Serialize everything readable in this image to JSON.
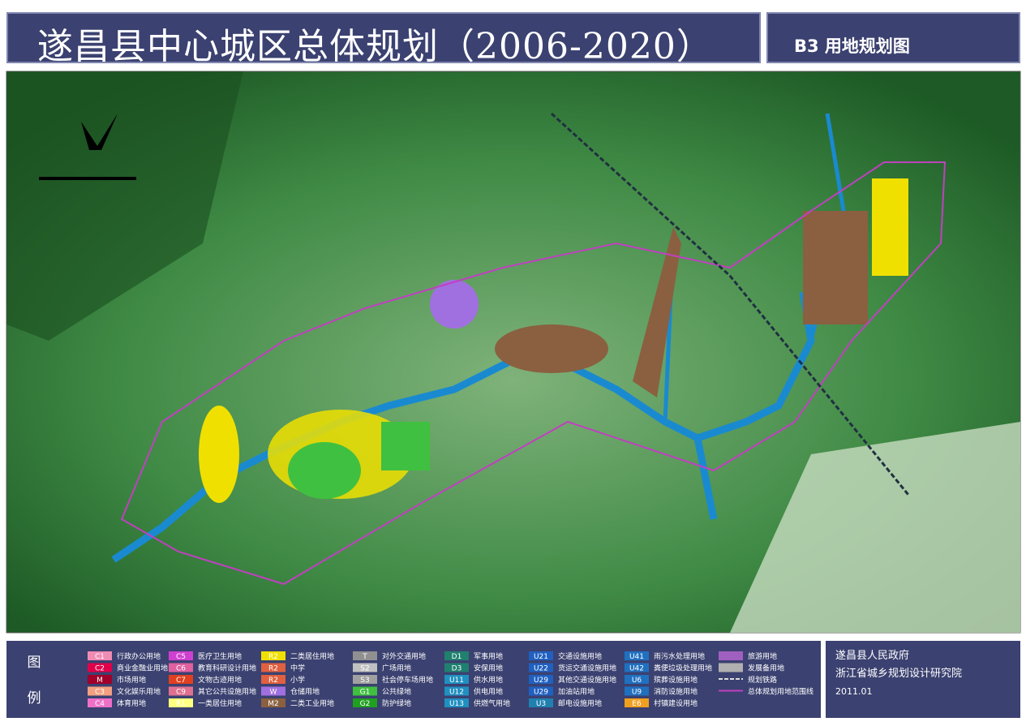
{
  "header": {
    "title": "遂昌县中心城区总体规划（2006-2020）",
    "sheet": "B3 用地规划图"
  },
  "legend": {
    "title_top": "图",
    "title_bottom": "例",
    "columns": [
      [
        {
          "code": "C1",
          "label": "行政办公用地",
          "color": "#f08cb4"
        },
        {
          "code": "C2",
          "label": "商业金融业用地",
          "color": "#e0004a"
        },
        {
          "code": "M",
          "label": "市场用地",
          "color": "#a0002a"
        },
        {
          "code": "C3",
          "label": "文化娱乐用地",
          "color": "#f4a080"
        },
        {
          "code": "C4",
          "label": "体育用地",
          "color": "#f070c8"
        }
      ],
      [
        {
          "code": "C5",
          "label": "医疗卫生用地",
          "color": "#d040d0"
        },
        {
          "code": "C6",
          "label": "教育科研设计用地",
          "color": "#e060a0"
        },
        {
          "code": "C7",
          "label": "文物古迹用地",
          "color": "#e04020"
        },
        {
          "code": "C9",
          "label": "其它公共设施用地",
          "color": "#e07090"
        },
        {
          "code": "R1",
          "label": "一类居住用地",
          "color": "#ffff80"
        }
      ],
      [
        {
          "code": "R2",
          "label": "二类居住用地",
          "color": "#f0e000"
        },
        {
          "code": "R2",
          "label": "中学",
          "color": "#e06040"
        },
        {
          "code": "R2",
          "label": "小学",
          "color": "#e06040"
        },
        {
          "code": "W",
          "label": "仓储用地",
          "color": "#a070e0"
        },
        {
          "code": "M2",
          "label": "二类工业用地",
          "color": "#8a6040"
        }
      ],
      [
        {
          "code": "T",
          "label": "对外交通用地",
          "color": "#909090"
        },
        {
          "code": "S2",
          "label": "广场用地",
          "color": "#c0c0c0"
        },
        {
          "code": "S3",
          "label": "社会停车场用地",
          "color": "#a0a0a0"
        },
        {
          "code": "G1",
          "label": "公共绿地",
          "color": "#40c040"
        },
        {
          "code": "G2",
          "label": "防护绿地",
          "color": "#20a020"
        }
      ],
      [
        {
          "code": "D1",
          "label": "军事用地",
          "color": "#208070"
        },
        {
          "code": "D3",
          "label": "安保用地",
          "color": "#208070"
        },
        {
          "code": "U11",
          "label": "供水用地",
          "color": "#2090c0"
        },
        {
          "code": "U12",
          "label": "供电用地",
          "color": "#2090c0"
        },
        {
          "code": "U13",
          "label": "供燃气用地",
          "color": "#2090c0"
        }
      ],
      [
        {
          "code": "U21",
          "label": "交通设施用地",
          "color": "#2060c0"
        },
        {
          "code": "U22",
          "label": "货运交通设施用地",
          "color": "#2060c0"
        },
        {
          "code": "U29",
          "label": "其他交通设施用地",
          "color": "#2060c0"
        },
        {
          "code": "U29",
          "label": "加油站用地",
          "color": "#2060c0"
        },
        {
          "code": "U3",
          "label": "邮电设施用地",
          "color": "#2080b0"
        }
      ],
      [
        {
          "code": "U41",
          "label": "雨污水处理用地",
          "color": "#2070c0"
        },
        {
          "code": "U42",
          "label": "粪便垃圾处理用地",
          "color": "#2070c0"
        },
        {
          "code": "U6",
          "label": "殡葬设施用地",
          "color": "#2070c0"
        },
        {
          "code": "U9",
          "label": "消防设施用地",
          "color": "#2070c0"
        },
        {
          "code": "E6",
          "label": "村镇建设用地",
          "color": "#f0a020"
        }
      ],
      [
        {
          "label": "旅游用地",
          "color": "#a060c0"
        },
        {
          "label": "发展备用地",
          "color": "#b0b0b0"
        },
        {
          "label": "规划铁路",
          "color": "#203040"
        },
        {
          "label": "总体规划用地范围线",
          "color": "#c040c0"
        }
      ]
    ]
  },
  "org": {
    "line1": "遂昌县人民政府",
    "line2": "浙江省城乡规划设计研究院",
    "date": "2011.01"
  }
}
